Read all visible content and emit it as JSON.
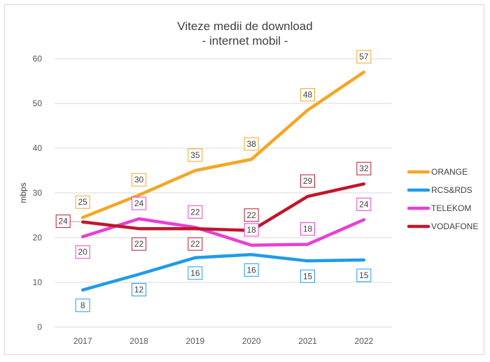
{
  "chart_data": {
    "type": "line",
    "title": "Viteze medii de download",
    "subtitle": "- internet mobil -",
    "xlabel": "",
    "ylabel": "mbps",
    "ylim": [
      0,
      60
    ],
    "yticks": [
      0,
      10,
      20,
      30,
      40,
      50,
      60
    ],
    "categories": [
      "2017",
      "2018",
      "2019",
      "2020",
      "2021",
      "2022"
    ],
    "legend_position": "right",
    "series": [
      {
        "name": "ORANGE",
        "color": "#F5A623",
        "values": [
          24.5,
          29.5,
          35,
          37.5,
          48.5,
          57
        ],
        "labels": [
          "25",
          "30",
          "35",
          "38",
          "48",
          "57"
        ],
        "label_pos": [
          "above",
          "above",
          "above",
          "above",
          "above",
          "above"
        ]
      },
      {
        "name": "RCS&RDS",
        "color": "#1E9BE9",
        "values": [
          8.3,
          11.8,
          15.5,
          16.2,
          14.8,
          15
        ],
        "labels": [
          "8",
          "12",
          "16",
          "16",
          "15",
          "15"
        ],
        "label_pos": [
          "below",
          "below",
          "below",
          "below",
          "below",
          "below"
        ]
      },
      {
        "name": "TELEKOM",
        "color": "#E83FD6",
        "values": [
          20.2,
          24.2,
          22.3,
          18.3,
          18.5,
          24
        ],
        "labels": [
          "20",
          "24",
          "22",
          "18",
          "18",
          "24"
        ],
        "label_pos": [
          "below",
          "above",
          "above",
          "above",
          "above",
          "above"
        ]
      },
      {
        "name": "VODAFONE",
        "color": "#C0162C",
        "values": [
          23.5,
          22,
          22,
          21.6,
          29.2,
          32
        ],
        "labels": [
          "24",
          "22",
          "22",
          "22",
          "29",
          "32"
        ],
        "label_pos": [
          "left",
          "below",
          "below",
          "above",
          "above",
          "above"
        ]
      }
    ]
  }
}
